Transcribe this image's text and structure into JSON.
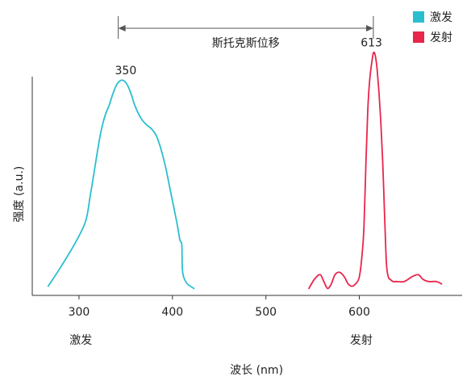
{
  "chart_data": {
    "type": "line",
    "xlabel": "波长 (nm)",
    "ylabel": "强度 (a.u.)",
    "xlim": [
      250,
      710
    ],
    "ylim": [
      0,
      1
    ],
    "x_ticks": [
      300,
      400,
      500,
      600
    ],
    "grid": false,
    "legend": {
      "placement": "top-right",
      "entries": [
        "激发",
        "发射"
      ]
    },
    "series": [
      {
        "name": "激发",
        "color": "#29bfcf",
        "x": [
          267,
          280,
          295,
          307,
          312,
          318,
          323,
          328,
          332,
          336,
          340,
          344,
          348,
          352,
          356,
          360,
          366,
          372,
          378,
          383,
          388,
          393,
          397,
          401,
          405,
          408,
          410,
          410.5,
          412,
          416,
          423
        ],
        "y": [
          0.04,
          0.12,
          0.22,
          0.32,
          0.43,
          0.58,
          0.7,
          0.78,
          0.82,
          0.87,
          0.91,
          0.93,
          0.93,
          0.91,
          0.87,
          0.82,
          0.77,
          0.74,
          0.72,
          0.69,
          0.63,
          0.55,
          0.47,
          0.39,
          0.31,
          0.24,
          0.22,
          0.12,
          0.08,
          0.05,
          0.03
        ]
      },
      {
        "name": "发射",
        "color": "#e8254b",
        "x": [
          546,
          552,
          558,
          562,
          566,
          570,
          574,
          579,
          584,
          588,
          592,
          596,
          600,
          603,
          605,
          607,
          609,
          611,
          613,
          615,
          617,
          619,
          621,
          623,
          625,
          627,
          629,
          631,
          633,
          636,
          640,
          648,
          656,
          663,
          668,
          674,
          682,
          688
        ],
        "y": [
          0.03,
          0.07,
          0.09,
          0.06,
          0.03,
          0.05,
          0.09,
          0.1,
          0.08,
          0.05,
          0.04,
          0.05,
          0.08,
          0.18,
          0.3,
          0.57,
          0.8,
          0.93,
          1.0,
          1.05,
          1.04,
          0.98,
          0.88,
          0.75,
          0.58,
          0.35,
          0.14,
          0.08,
          0.07,
          0.06,
          0.06,
          0.06,
          0.08,
          0.09,
          0.07,
          0.06,
          0.06,
          0.05
        ]
      }
    ],
    "annotations": [
      {
        "text": "350",
        "x": 350,
        "y": 0.93
      },
      {
        "text": "613",
        "x": 613,
        "y": 1.05
      }
    ],
    "region_labels": [
      {
        "text": "激发",
        "x": 302
      },
      {
        "text": "发射",
        "x": 602
      }
    ],
    "shift_arrow": {
      "label": "斯托克斯位移",
      "from": 342,
      "to": 615
    }
  }
}
